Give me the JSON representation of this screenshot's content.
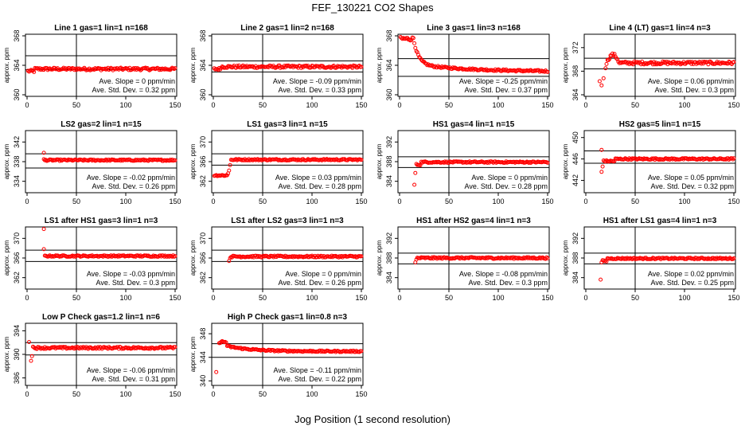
{
  "figure": {
    "title": "FEF_130221  CO2 Shapes",
    "xlabel": "Jog Position (1 second resolution)",
    "ylabel": "approx. ppm",
    "slope_prefix": "Ave. Slope = ",
    "slope_unit": " ppm/min",
    "std_prefix": "Ave. Std. Dev. = ",
    "std_unit": " ppm",
    "colors": {
      "points": "#ff0000",
      "axes": "#000000"
    }
  },
  "chart_data": [
    {
      "type": "scatter",
      "title": "Line 1 gas=1 lin=1 n=168",
      "xlim": [
        0,
        150
      ],
      "ylim": [
        360,
        368
      ],
      "yticks": [
        360,
        364,
        368
      ],
      "xticks": [
        0,
        50,
        100,
        150
      ],
      "hlines": [
        363.4,
        365.3
      ],
      "vline": 50,
      "slope": "0",
      "std": "0.32",
      "shape": "flat",
      "base": 363.5
    },
    {
      "type": "scatter",
      "title": "Line 2 gas=1 lin=2 n=168",
      "xlim": [
        0,
        150
      ],
      "ylim": [
        360,
        368
      ],
      "yticks": [
        360,
        364,
        368
      ],
      "xticks": [
        0,
        50,
        100,
        150
      ],
      "hlines": [
        363.1,
        364.6
      ],
      "vline": 50,
      "slope": "-0.09",
      "std": "0.33",
      "shape": "flat",
      "base": 363.8
    },
    {
      "type": "scatter",
      "title": "Line 3 gas=1 lin=3 n=168",
      "xlim": [
        0,
        150
      ],
      "ylim": [
        360,
        368
      ],
      "yticks": [
        360,
        364,
        368
      ],
      "xticks": [
        0,
        50,
        100,
        150
      ],
      "hlines": [
        362.5,
        364.9
      ],
      "vline": 50,
      "slope": "-0.25",
      "std": "0.37",
      "shape": "decay",
      "base": 363.4
    },
    {
      "type": "scatter",
      "title": "Line 4 (LT) gas=1 lin=4 n=3",
      "xlim": [
        0,
        150
      ],
      "ylim": [
        364,
        374
      ],
      "yticks": [
        364,
        368,
        372
      ],
      "xticks": [
        0,
        50,
        100,
        150
      ],
      "hlines": [
        368.4,
        370.2
      ],
      "vline": 50,
      "slope": "0.06",
      "std": "0.3",
      "shape": "bump",
      "base": 369.4
    },
    {
      "type": "scatter",
      "title": "LS2 gas=2 lin=1 n=15",
      "xlim": [
        0,
        150
      ],
      "ylim": [
        332,
        344
      ],
      "yticks": [
        334,
        338,
        342
      ],
      "xticks": [
        0,
        50,
        100,
        150
      ],
      "hlines": [
        336.7,
        339.6
      ],
      "vline": 50,
      "slope": "-0.02",
      "std": "0.26",
      "shape": "spike",
      "base": 338.3
    },
    {
      "type": "scatter",
      "title": "LS1 gas=3 lin=1 n=15",
      "xlim": [
        0,
        150
      ],
      "ylim": [
        360,
        372
      ],
      "yticks": [
        362,
        366,
        370
      ],
      "xticks": [
        0,
        50,
        100,
        150
      ],
      "hlines": [
        365.3,
        367.6
      ],
      "vline": 50,
      "slope": "0.03",
      "std": "0.28",
      "shape": "step",
      "base": 366.4
    },
    {
      "type": "scatter",
      "title": "HS1 gas=4 lin=1 n=15",
      "xlim": [
        0,
        150
      ],
      "ylim": [
        382,
        394
      ],
      "yticks": [
        384,
        388,
        392
      ],
      "xticks": [
        0,
        50,
        100,
        150
      ],
      "hlines": [
        386.8,
        389.0
      ],
      "vline": 50,
      "slope": "0",
      "std": "0.28",
      "shape": "dip",
      "base": 387.9
    },
    {
      "type": "scatter",
      "title": "HS2 gas=5 lin=1 n=15",
      "xlim": [
        0,
        150
      ],
      "ylim": [
        440,
        451
      ],
      "yticks": [
        442,
        446,
        450
      ],
      "xticks": [
        0,
        50,
        100,
        150
      ],
      "hlines": [
        445.2,
        447.5
      ],
      "vline": 50,
      "slope": "0.05",
      "std": "0.32",
      "shape": "spike2",
      "base": 446.0
    },
    {
      "type": "scatter",
      "title": "LS1 after HS1 gas=3 lin=1 n=3",
      "xlim": [
        0,
        150
      ],
      "ylim": [
        360,
        372
      ],
      "yticks": [
        362,
        366,
        370
      ],
      "xticks": [
        0,
        50,
        100,
        150
      ],
      "hlines": [
        365.3,
        367.6
      ],
      "vline": 50,
      "slope": "-0.03",
      "std": "0.3",
      "shape": "spike",
      "base": 366.4
    },
    {
      "type": "scatter",
      "title": "LS1 after LS2 gas=3 lin=1 n=3",
      "xlim": [
        0,
        150
      ],
      "ylim": [
        360,
        372
      ],
      "yticks": [
        362,
        366,
        370
      ],
      "xticks": [
        0,
        50,
        100,
        150
      ],
      "hlines": [
        365.3,
        367.6
      ],
      "vline": 50,
      "slope": "0",
      "std": "0.26",
      "shape": "smalldip",
      "base": 366.3
    },
    {
      "type": "scatter",
      "title": "HS1 after HS2 gas=4 lin=1 n=3",
      "xlim": [
        0,
        150
      ],
      "ylim": [
        382,
        394
      ],
      "yticks": [
        384,
        388,
        392
      ],
      "xticks": [
        0,
        50,
        100,
        150
      ],
      "hlines": [
        386.8,
        389.0
      ],
      "vline": 50,
      "slope": "-0.08",
      "std": "0.3",
      "shape": "smalldip",
      "base": 388.0
    },
    {
      "type": "scatter",
      "title": "HS1 after LS1 gas=4 lin=1 n=3",
      "xlim": [
        0,
        150
      ],
      "ylim": [
        382,
        394
      ],
      "yticks": [
        384,
        388,
        392
      ],
      "xticks": [
        0,
        50,
        100,
        150
      ],
      "hlines": [
        386.8,
        389.0
      ],
      "vline": 50,
      "slope": "0.02",
      "std": "0.25",
      "shape": "dip",
      "base": 387.9
    },
    {
      "type": "scatter",
      "title": "Low P Check gas=1.2 lin=1 n=6",
      "xlim": [
        0,
        150
      ],
      "ylim": [
        385,
        395
      ],
      "yticks": [
        386,
        390,
        394
      ],
      "xticks": [
        0,
        50,
        100,
        150
      ],
      "hlines": [
        389.9,
        392.0
      ],
      "vline": 50,
      "slope": "-0.06",
      "std": "0.31",
      "shape": "lowp",
      "base": 391.1
    },
    {
      "type": "scatter",
      "title": "High P Check gas=1 lin=0.8 n=3",
      "xlim": [
        0,
        150
      ],
      "ylim": [
        339.5,
        349.5
      ],
      "yticks": [
        340,
        344,
        348
      ],
      "xticks": [
        0,
        50,
        100,
        150
      ],
      "hlines": [
        344.0,
        346.3
      ],
      "vline": 50,
      "slope": "-0.11",
      "std": "0.22",
      "shape": "highp",
      "base": 345.0
    }
  ]
}
